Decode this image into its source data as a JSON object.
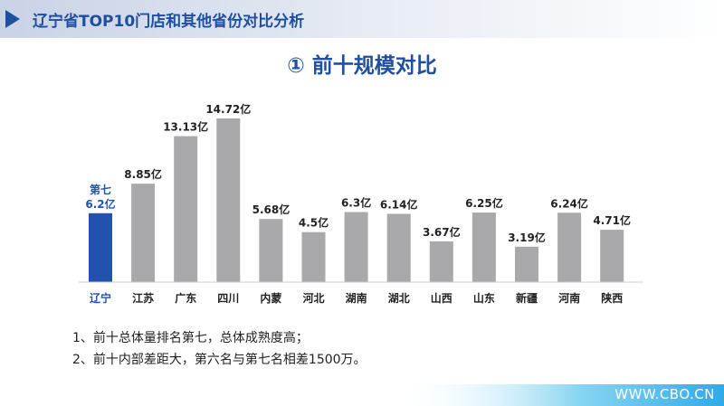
{
  "header": {
    "title": "辽宁省TOP10门店和其他省份对比分析"
  },
  "subtitle": "① 前十规模对比",
  "notes": [
    "1、前十总体量排名第七，总体成熟度高；",
    "2、前十内部差距大，第六名与第七名相差1500万。"
  ],
  "watermark": "WWW.CBO.CN",
  "colors": {
    "highlight": "#2252ae",
    "bar": "#a9a9ab",
    "title": "#1f4fa0",
    "header_accent": "#1f4fa0"
  },
  "chart_data": {
    "type": "bar",
    "categories": [
      "辽宁",
      "江苏",
      "广东",
      "四川",
      "内蒙",
      "河北",
      "湖南",
      "湖北",
      "山西",
      "山东",
      "新疆",
      "河南",
      "陕西"
    ],
    "values": [
      6.2,
      8.85,
      13.13,
      14.72,
      5.68,
      4.5,
      6.3,
      6.14,
      3.67,
      6.25,
      3.19,
      6.24,
      4.71
    ],
    "data_labels": [
      "6.2亿",
      "8.85亿",
      "13.13亿",
      "14.72亿",
      "5.68亿",
      "4.5亿",
      "6.3亿",
      "6.14亿",
      "3.67亿",
      "6.25亿",
      "3.19亿",
      "6.24亿",
      "4.71亿"
    ],
    "highlight_index": 0,
    "highlight_label": "第七",
    "unit": "亿",
    "ylim": [
      0,
      14.72
    ],
    "title": "",
    "xlabel": "",
    "ylabel": "",
    "grid": false,
    "legend": "none"
  }
}
